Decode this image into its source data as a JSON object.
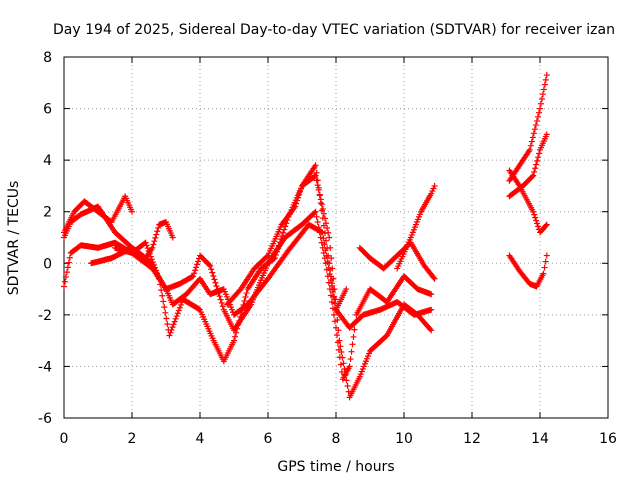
{
  "chart_data": {
    "type": "scatter",
    "title": "Day 194 of 2025, Sidereal Day-to-day VTEC variation (SDTVAR) for receiver izan",
    "xlabel": "GPS time / hours",
    "ylabel": "SDTVAR / TECUs",
    "xlim": [
      0,
      16
    ],
    "ylim": [
      -6,
      8
    ],
    "xticks": [
      0,
      2,
      4,
      6,
      8,
      10,
      12,
      14,
      16
    ],
    "yticks": [
      -6,
      -4,
      -2,
      0,
      2,
      4,
      6,
      8
    ],
    "grid": true,
    "legend": "none",
    "marker": "+",
    "color": "#ff0000",
    "series": [
      {
        "x": [
          0.0,
          0.3,
          0.6,
          1.0,
          1.4,
          1.8,
          2.0
        ],
        "y": [
          1.2,
          2.0,
          2.4,
          2.0,
          1.6,
          2.6,
          2.0
        ]
      },
      {
        "x": [
          0.0,
          0.2,
          0.5,
          1.0,
          1.5,
          2.0,
          2.4,
          2.6,
          2.8,
          3.0,
          3.2
        ],
        "y": [
          1.0,
          1.6,
          1.9,
          2.2,
          1.2,
          0.6,
          0.2,
          0.6,
          1.5,
          1.6,
          1.0
        ]
      },
      {
        "x": [
          0.0,
          0.2,
          0.5,
          1.0,
          1.5,
          2.0,
          2.6,
          3.0,
          3.2,
          3.6,
          4.0,
          4.3,
          4.7,
          5.0,
          5.4,
          6.0,
          6.6,
          7.2,
          7.6,
          8.0,
          8.4,
          8.8,
          9.3,
          9.8,
          10.3,
          10.8
        ],
        "y": [
          -0.9,
          0.4,
          0.7,
          0.6,
          0.8,
          0.4,
          -0.2,
          -1.0,
          -1.6,
          -1.2,
          -0.6,
          -1.2,
          -1.0,
          -2.0,
          -1.6,
          -0.6,
          0.5,
          1.5,
          1.2,
          -1.8,
          -2.5,
          -2.0,
          -1.8,
          -1.5,
          -2.0,
          -1.8
        ]
      },
      {
        "x": [
          0.8,
          1.4,
          2.0,
          2.5,
          3.0,
          3.4,
          3.8,
          4.0,
          4.3,
          4.7,
          5.0,
          5.5,
          6.0,
          6.5,
          7.0,
          7.4,
          7.7,
          8.0,
          8.2,
          8.4,
          8.6,
          9.0,
          9.5,
          10.0,
          10.4,
          10.8
        ],
        "y": [
          0.0,
          0.2,
          0.6,
          0.1,
          -1.0,
          -0.8,
          -0.5,
          0.3,
          -0.1,
          -1.8,
          -2.6,
          -1.6,
          0.0,
          1.0,
          1.5,
          2.0,
          0.0,
          -2.5,
          -4.5,
          -4.0,
          -2.0,
          -1.0,
          -1.5,
          -0.5,
          -1.0,
          -1.2
        ]
      },
      {
        "x": [
          1.5,
          2.0,
          2.4,
          2.8,
          3.1,
          3.5,
          4.0,
          4.4,
          4.7,
          5.0,
          5.4,
          5.8,
          6.2,
          6.6,
          7.0,
          7.4,
          7.8,
          8.1,
          8.4,
          8.7,
          9.0,
          9.5,
          10.0,
          10.4,
          10.8
        ],
        "y": [
          0.6,
          0.4,
          0.8,
          -0.6,
          -2.8,
          -1.4,
          -1.8,
          -3.0,
          -3.8,
          -3.0,
          -1.0,
          -0.2,
          0.2,
          1.8,
          3.0,
          3.4,
          1.0,
          -3.0,
          -5.2,
          -4.4,
          -3.4,
          -2.8,
          -1.6,
          -2.0,
          -2.6
        ]
      },
      {
        "x": [
          4.8,
          5.2,
          5.6,
          6.0,
          6.4,
          6.8,
          7.0,
          7.4,
          7.8,
          8.0,
          8.3
        ],
        "y": [
          -1.6,
          -1.0,
          -0.2,
          0.3,
          1.5,
          2.2,
          3.0,
          3.8,
          0.0,
          -1.8,
          -1.0
        ]
      },
      {
        "x": [
          8.7,
          9.0,
          9.4,
          9.8,
          10.2,
          10.6,
          10.9
        ],
        "y": [
          0.6,
          0.2,
          -0.2,
          0.3,
          0.8,
          -0.1,
          -0.6
        ]
      },
      {
        "x": [
          9.8,
          10.2,
          10.5,
          10.8,
          10.9
        ],
        "y": [
          -0.2,
          1.0,
          2.0,
          2.7,
          3.0
        ]
      },
      {
        "x": [
          13.1,
          13.4,
          13.7,
          14.0,
          14.2
        ],
        "y": [
          3.2,
          3.8,
          4.4,
          6.0,
          7.3
        ]
      },
      {
        "x": [
          13.1,
          13.5,
          13.8,
          14.0,
          14.2
        ],
        "y": [
          2.6,
          3.0,
          3.4,
          4.4,
          5.0
        ]
      },
      {
        "x": [
          13.1,
          13.4,
          13.8,
          14.0,
          14.2
        ],
        "y": [
          3.6,
          3.0,
          2.0,
          1.2,
          1.5
        ]
      },
      {
        "x": [
          13.1,
          13.4,
          13.7,
          13.9,
          14.1,
          14.2
        ],
        "y": [
          0.3,
          -0.3,
          -0.8,
          -0.9,
          -0.4,
          0.3
        ]
      }
    ]
  }
}
